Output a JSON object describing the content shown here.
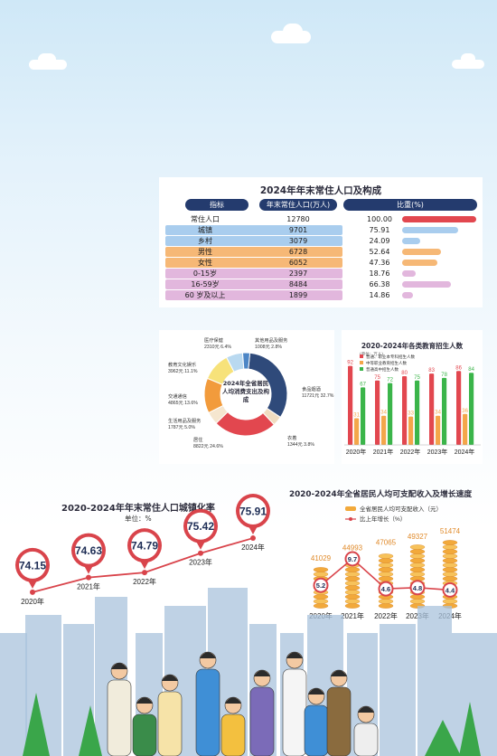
{
  "colors": {
    "navy": "#243b6e",
    "red": "#e2474f",
    "blue_row": "#a9cdee",
    "orange_row": "#f6b876",
    "pink_row": "#e2b7dd",
    "line": "#d9444b",
    "gold": "#f2a93b",
    "green": "#3bb54a",
    "bar_orange": "#f4a64a"
  },
  "population": {
    "title": "2024年年末常住人口及构成",
    "headers": [
      "指标",
      "年末常住人口(万人)",
      "比重(%)"
    ],
    "rows": [
      {
        "label": "常住人口",
        "value": "12780",
        "ratio": "100.00"
      },
      {
        "label": "城镇",
        "value": "9701",
        "ratio": "75.91"
      },
      {
        "label": "乡村",
        "value": "3079",
        "ratio": "24.09"
      },
      {
        "label": "男性",
        "value": "6728",
        "ratio": "52.64"
      },
      {
        "label": "女性",
        "value": "6052",
        "ratio": "47.36"
      },
      {
        "label": "0-15岁",
        "value": "2397",
        "ratio": "18.76"
      },
      {
        "label": "16-59岁",
        "value": "8484",
        "ratio": "66.38"
      },
      {
        "label": "60 岁及以上",
        "value": "1899",
        "ratio": "14.86"
      }
    ]
  },
  "chart_data": [
    {
      "type": "pie",
      "title": "2024年全省居民人均消费支出及构成",
      "slices": [
        {
          "name": "食品烟酒",
          "value": 11721,
          "percent": 32.7,
          "label": "食品烟酒",
          "value_text": "11721元",
          "percent_text": "32.7%",
          "color": "#2f4a7a"
        },
        {
          "name": "衣着",
          "value": 1344,
          "percent": 3.8,
          "label": "衣着",
          "value_text": "1344元",
          "percent_text": "3.8%",
          "color": "#f0dcc0"
        },
        {
          "name": "居住",
          "value": 8822,
          "percent": 24.6,
          "label": "居住",
          "value_text": "8822元",
          "percent_text": "24.6%",
          "color": "#e2474f"
        },
        {
          "name": "生活用品及服务",
          "value": 1787,
          "percent": 5.0,
          "label": "生活用品及服务",
          "value_text": "1787元",
          "percent_text": "5.0%",
          "color": "#f5e6cf"
        },
        {
          "name": "交通通信",
          "value": 4865,
          "percent": 13.6,
          "label": "交通通信",
          "value_text": "4865元",
          "percent_text": "13.6%",
          "color": "#f29b3c"
        },
        {
          "name": "教育文化娱乐",
          "value": 3962,
          "percent": 11.1,
          "label": "教育文化娱乐",
          "value_text": "3962元",
          "percent_text": "11.1%",
          "color": "#f7e27a"
        },
        {
          "name": "医疗保健",
          "value": 2310,
          "percent": 6.4,
          "label": "医疗保健",
          "value_text": "2310元",
          "percent_text": "6.4%",
          "color": "#b9d9f0"
        },
        {
          "name": "其他用品及服务",
          "value": 1008,
          "percent": 2.8,
          "label": "其他用品及服务",
          "value_text": "1008元",
          "percent_text": "2.8%",
          "color": "#4c86c6"
        }
      ]
    },
    {
      "type": "bar",
      "title": "2020-2024年各类教育招生人数",
      "unit": "(单位：万人)",
      "categories": [
        "2020年",
        "2021年",
        "2022年",
        "2023年",
        "2024年"
      ],
      "series": [
        {
          "name": "普通、职业本专科招生人数",
          "color": "#e2474f",
          "values": [
            92,
            75,
            80,
            83,
            86
          ]
        },
        {
          "name": "中等职业教育招生人数",
          "color": "#f4a64a",
          "values": [
            31,
            34,
            33,
            34,
            36
          ]
        },
        {
          "name": "普通高中招生人数",
          "color": "#3bb54a",
          "values": [
            67,
            72,
            75,
            78,
            84
          ]
        }
      ],
      "ylim": [
        0,
        100
      ]
    },
    {
      "type": "line",
      "title": "2020-2024年年末常住人口城镇化率",
      "unit": "单位：%",
      "categories": [
        "2020年",
        "2021年",
        "2022年",
        "2023年",
        "2024年"
      ],
      "values": [
        74.15,
        74.63,
        74.79,
        75.42,
        75.91
      ],
      "labels": [
        "74.15",
        "74.63",
        "74.79",
        "75.42",
        "75.91"
      ]
    },
    {
      "type": "bar",
      "title": "2020-2024年全省居民人均可支配收入及增长速度",
      "categories": [
        "2020年",
        "2021年",
        "2022年",
        "2023年",
        "2024年"
      ],
      "series": [
        {
          "name": "全省居民人均可支配收入（元）",
          "values": [
            41029,
            44993,
            47065,
            49327,
            51474
          ],
          "labels": [
            "41029",
            "44993",
            "47065",
            "49327",
            "51474"
          ]
        },
        {
          "name": "比上年增长（%）",
          "values": [
            5.2,
            9.7,
            4.6,
            4.8,
            4.4
          ],
          "labels": [
            "5.2",
            "9.7",
            "4.6",
            "4.8",
            "4.4"
          ]
        }
      ]
    }
  ]
}
